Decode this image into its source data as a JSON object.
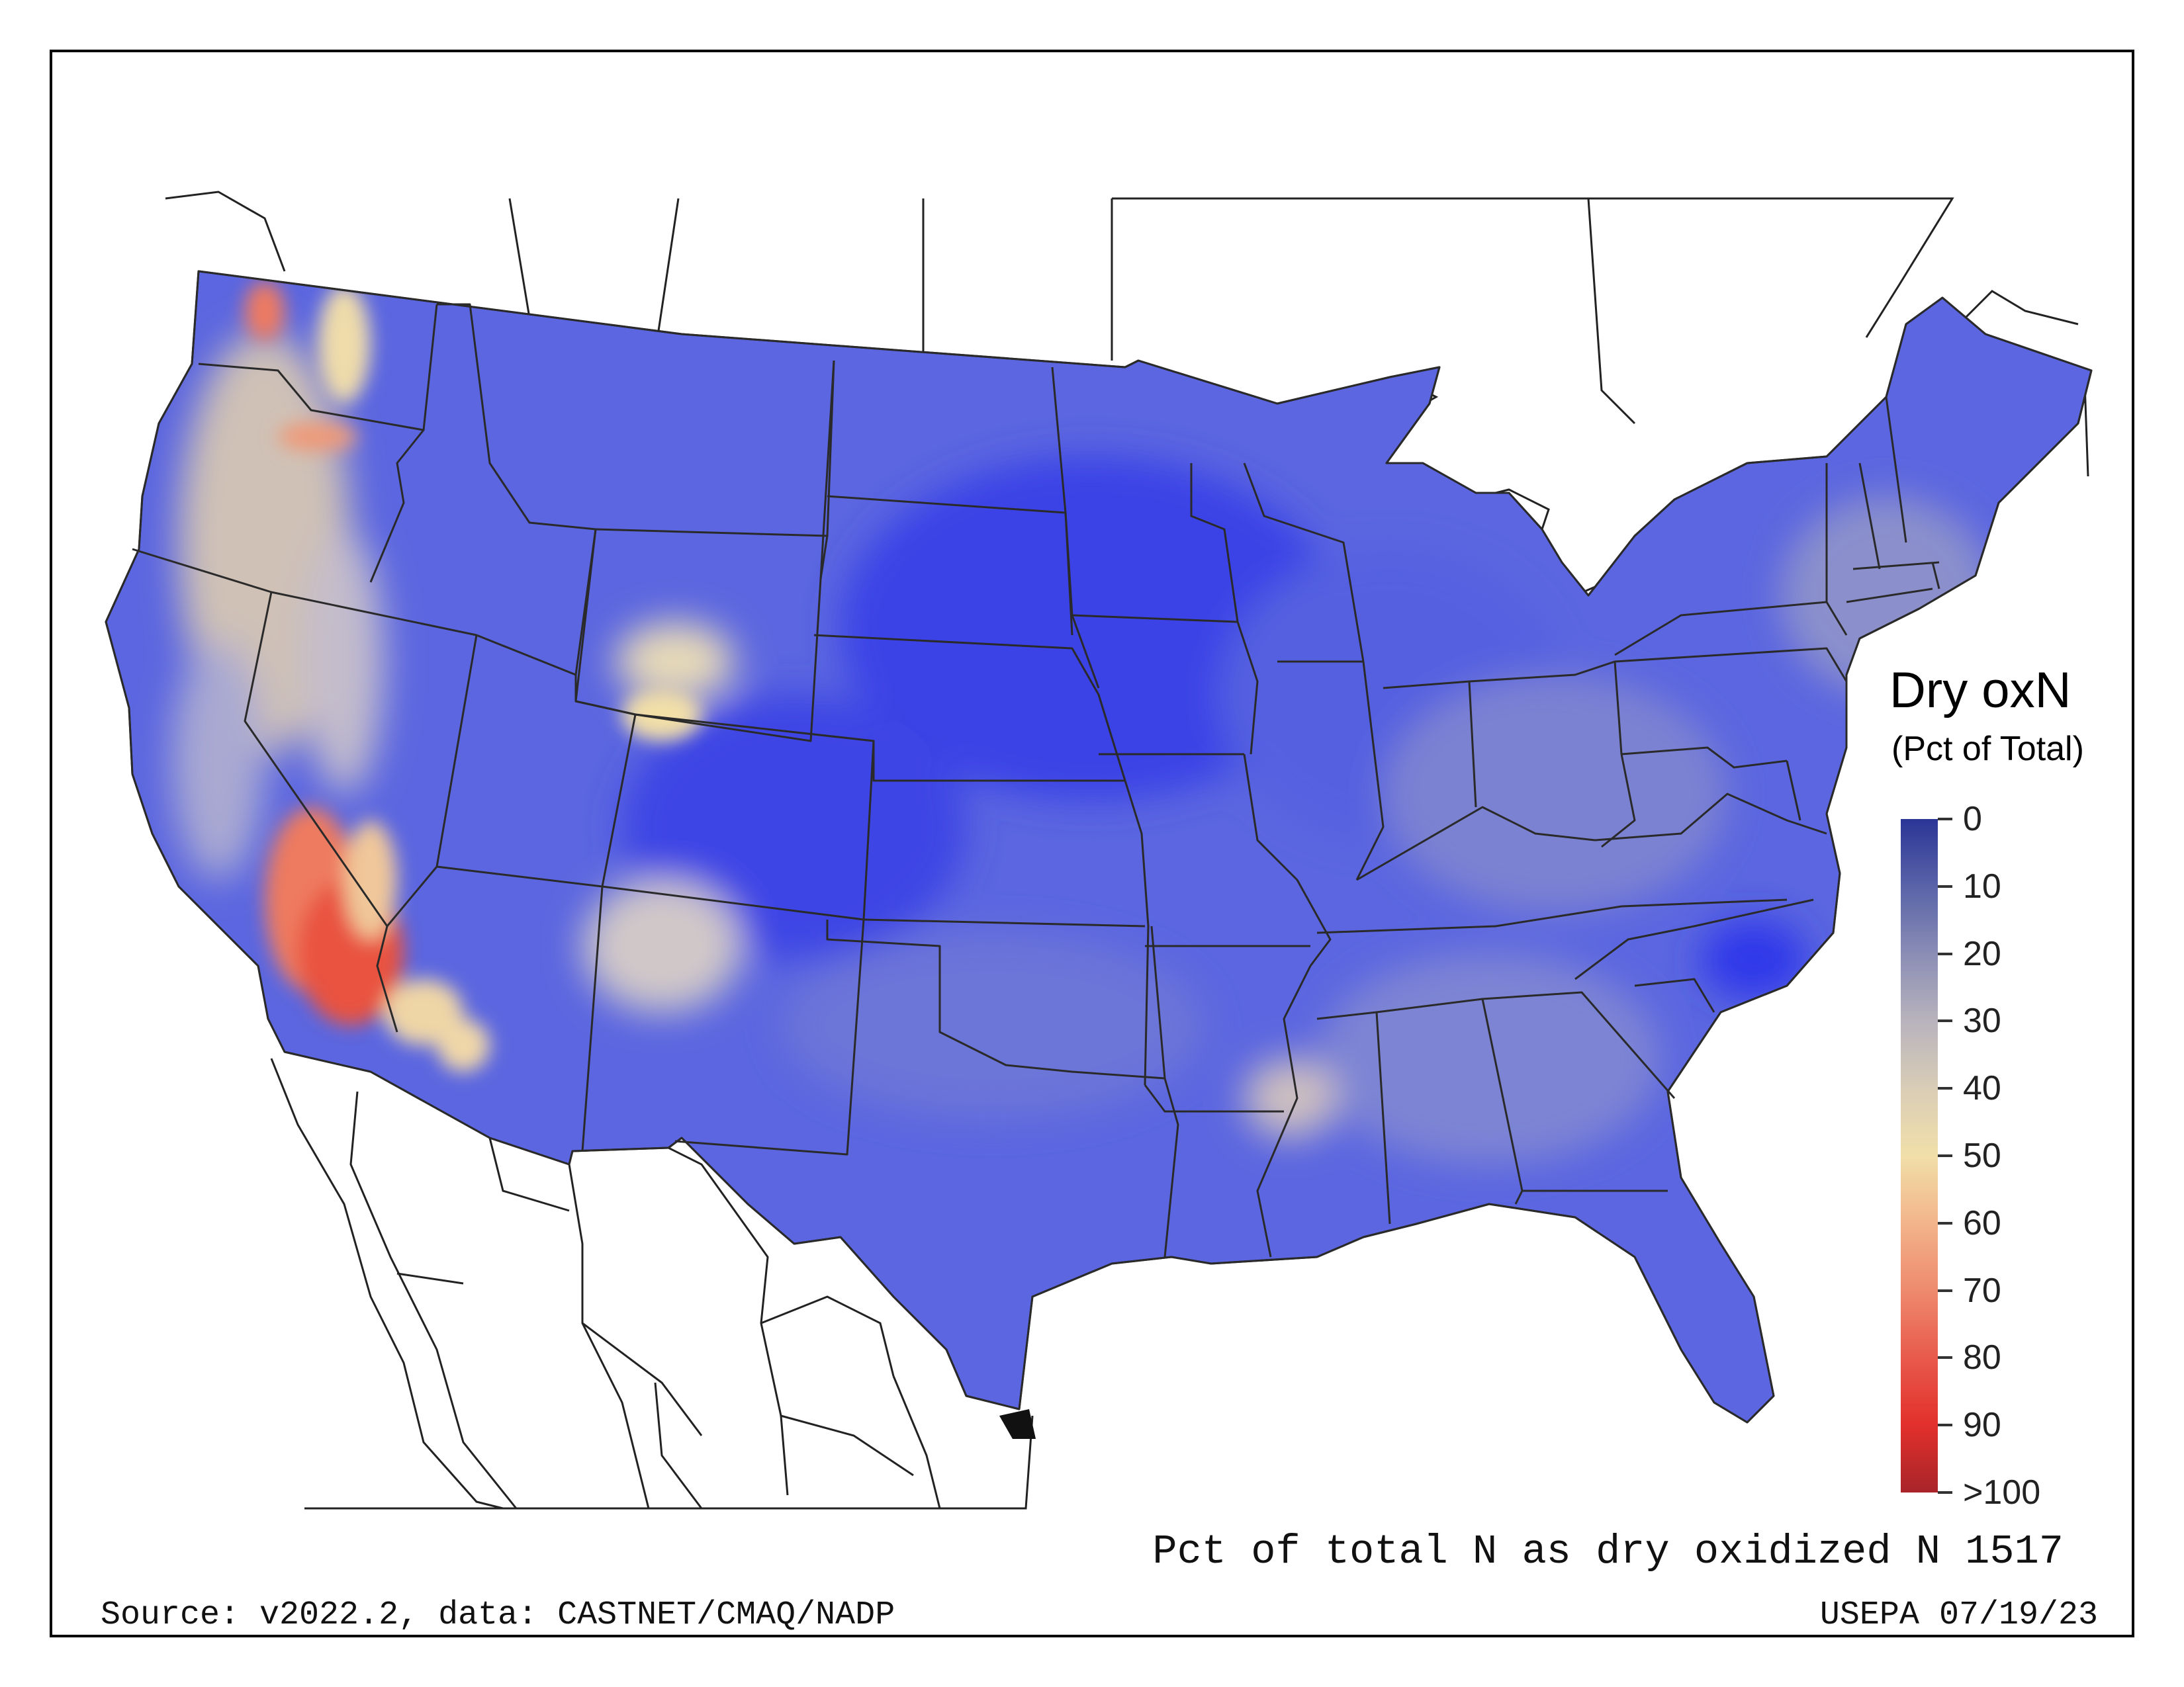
{
  "legend": {
    "title": "Dry oxN",
    "subtitle": "(Pct of Total)",
    "ticks": [
      "0",
      "10",
      "20",
      "30",
      "40",
      "50",
      "60",
      "70",
      "80",
      "90",
      ">100"
    ],
    "colors": [
      "#2b3596",
      "#5963a8",
      "#8a8db5",
      "#b8b3bd",
      "#d9cdb6",
      "#f1dfa9",
      "#f2b48b",
      "#ee8a6d",
      "#e85a4b",
      "#e2302c",
      "#a82429"
    ]
  },
  "caption": "Pct of total N as dry oxidized N 1517",
  "source": "Source: v2022.2, data: CASTNET/CMAQ/NADP",
  "agency": "USEPA 07/19/23",
  "map_colors": {
    "base_blue": "#5b66e0",
    "deep_blue": "#2f36e8",
    "mid_blue": "#7b82d6",
    "tan": "#d6cfc0",
    "yellow": "#f0dfa8",
    "orange": "#ef9a78",
    "red": "#e84f3e"
  }
}
